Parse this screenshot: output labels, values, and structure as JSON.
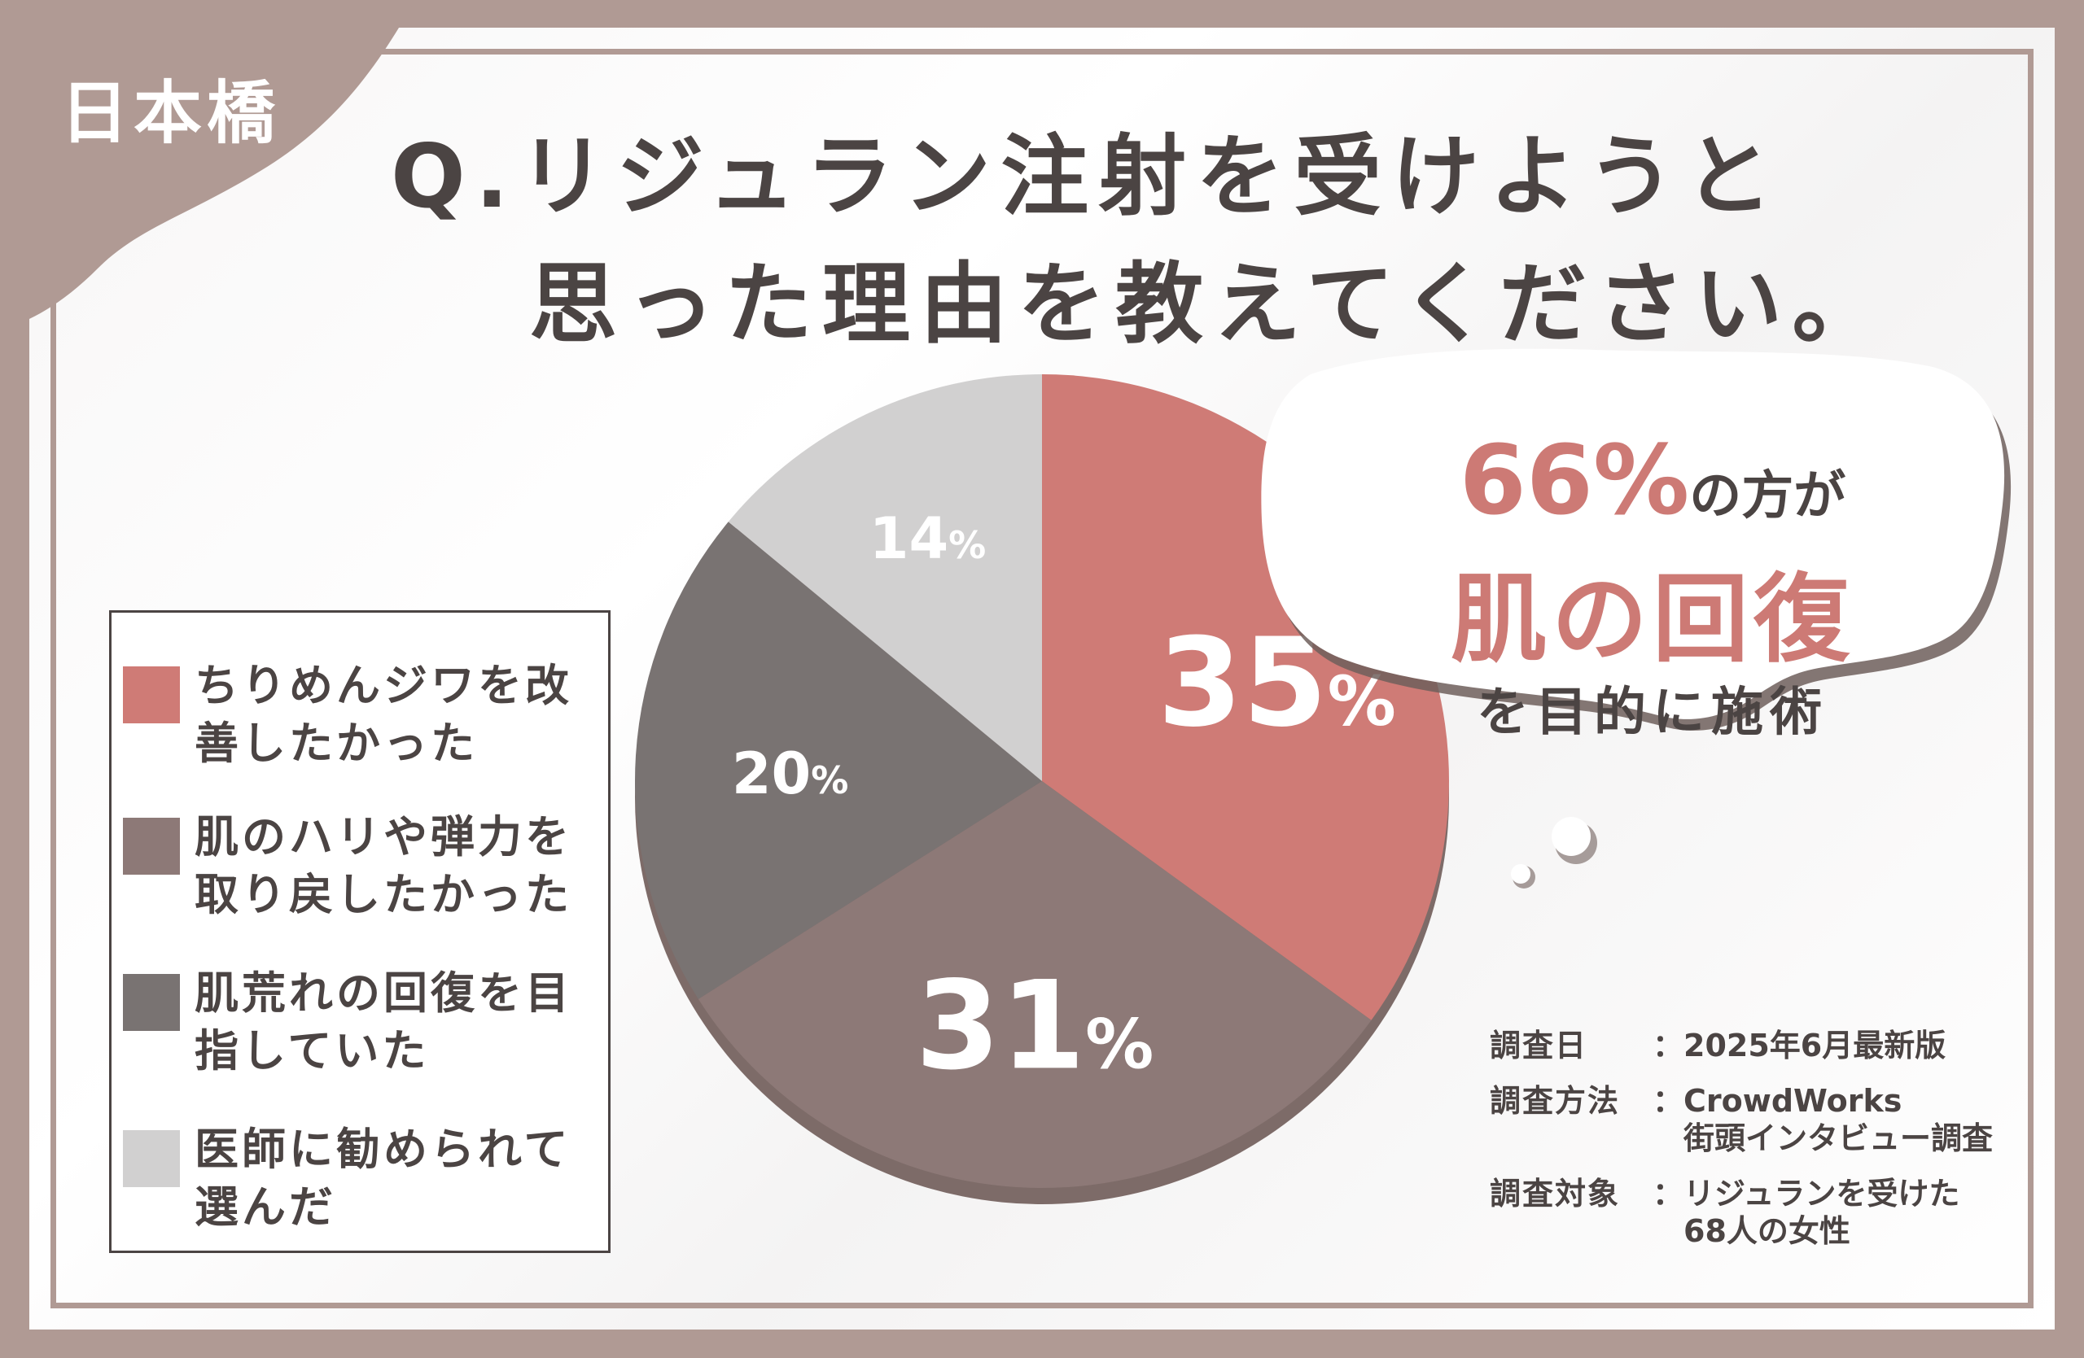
{
  "location": "日本橋",
  "title": {
    "line1": "Q.リジュラン注射を受けようと",
    "line2": "思った理由を教えてください。"
  },
  "chart_data": {
    "type": "pie",
    "title": "",
    "slices": [
      {
        "label": "ちりめんジワを改善したかった",
        "value": 35,
        "display": "35",
        "color": "#cf7b76"
      },
      {
        "label": "肌のハリや弾力を取り戻したかった",
        "value": 31,
        "display": "31",
        "color": "#8d7977"
      },
      {
        "label": "肌荒れの回復を目指していた",
        "value": 20,
        "display": "20",
        "color": "#797372"
      },
      {
        "label": "医師に勧められて選んだ",
        "value": 14,
        "display": "14",
        "color": "#d1d0d0"
      }
    ],
    "unit": "%",
    "legend_position": "left"
  },
  "legend": {
    "items": [
      {
        "line1": "ちりめんジワを改",
        "line2": "善したかった"
      },
      {
        "line1": "肌のハリや弾力を",
        "line2": "取り戻したかった"
      },
      {
        "line1": "肌荒れの回復を目",
        "line2": "指していた"
      },
      {
        "line1": "医師に勧められて",
        "line2": "選んだ"
      }
    ]
  },
  "callout": {
    "percent": "66%",
    "suffix": "の方が",
    "headline": "肌の回復",
    "tail": "を目的に施術"
  },
  "survey": {
    "date_label": "調査日",
    "date_value": "2025年6月最新版",
    "method_label": "調査方法",
    "method_value_1": "CrowdWorks",
    "method_value_2": "街頭インタビュー調査",
    "target_label": "調査対象",
    "target_value_1": "リジュランを受けた",
    "target_value_2": "68人の女性",
    "colon": "："
  },
  "colors": {
    "frame": "#b09a94",
    "text": "#4b4443",
    "accent": "#cd7a75"
  }
}
